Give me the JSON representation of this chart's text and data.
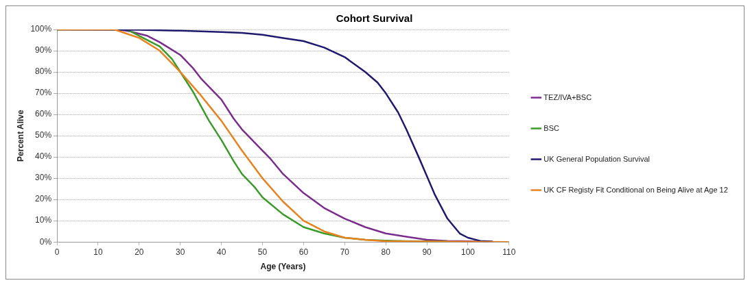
{
  "chart_data": {
    "type": "line",
    "title": "Cohort Survival",
    "xlabel": "Age (Years)",
    "ylabel": "Percent Alive",
    "xlim": [
      0,
      110
    ],
    "xticks": [
      0,
      10,
      20,
      30,
      40,
      50,
      60,
      70,
      80,
      90,
      100,
      110
    ],
    "ylim": [
      0,
      100
    ],
    "yticks": [
      {
        "value": 0,
        "label": "0%"
      },
      {
        "value": 10,
        "label": "10%"
      },
      {
        "value": 20,
        "label": "20%"
      },
      {
        "value": 30,
        "label": "30%"
      },
      {
        "value": 40,
        "label": "40%"
      },
      {
        "value": 50,
        "label": "50%"
      },
      {
        "value": 60,
        "label": "60%"
      },
      {
        "value": 70,
        "label": "70%"
      },
      {
        "value": 80,
        "label": "80%"
      },
      {
        "value": 90,
        "label": "90%"
      },
      {
        "value": 100,
        "label": "100%"
      }
    ],
    "grid": "y",
    "legend": "right",
    "marker": "none",
    "line_style": "solid",
    "series": [
      {
        "name": "TEZ/IVA+BSC",
        "color": "#7b2d8e",
        "x": [
          0,
          15,
          18,
          20,
          22,
          25,
          30,
          33,
          35,
          40,
          43,
          45,
          50,
          52,
          55,
          60,
          65,
          70,
          75,
          80,
          85,
          90,
          95,
          100,
          105
        ],
        "values": [
          100,
          100,
          99,
          98,
          97,
          94,
          88,
          82,
          77,
          67,
          58,
          53,
          43,
          39,
          32,
          23,
          16,
          11,
          7,
          4,
          2.5,
          1,
          0.5,
          0.3,
          0.1
        ]
      },
      {
        "name": "BSC",
        "color": "#3a9a2a",
        "x": [
          0,
          17,
          20,
          25,
          28,
          30,
          33,
          35,
          37,
          40,
          43,
          45,
          48,
          50,
          55,
          60,
          65,
          70,
          75,
          80,
          85,
          95
        ],
        "values": [
          100,
          100,
          97,
          92,
          86,
          80,
          71,
          64,
          57,
          48,
          38,
          32,
          26,
          21,
          13,
          7,
          4,
          2,
          1,
          0.6,
          0.4,
          0.2
        ]
      },
      {
        "name": "UK General Population Survival",
        "color": "#1f1a6e",
        "x": [
          0,
          20,
          30,
          40,
          45,
          50,
          55,
          60,
          65,
          70,
          75,
          78,
          80,
          83,
          85,
          88,
          90,
          92,
          95,
          98,
          100,
          103,
          106
        ],
        "values": [
          100,
          99.8,
          99.4,
          98.8,
          98.4,
          97.5,
          96,
          94.5,
          91.5,
          87,
          80,
          75,
          70,
          61,
          53,
          40,
          31,
          22,
          11,
          4,
          2,
          0.5,
          0.2
        ]
      },
      {
        "name": "UK CF Registy Fit Conditional on Being Alive at Age 12",
        "color": "#e8821e",
        "x": [
          0,
          14,
          17,
          20,
          25,
          30,
          35,
          40,
          45,
          50,
          55,
          60,
          65,
          70,
          75,
          80,
          90,
          110
        ],
        "values": [
          100,
          100,
          98,
          96,
          90,
          80,
          69,
          57,
          43,
          30,
          19,
          10,
          5,
          2,
          1,
          0.4,
          0.2,
          0
        ]
      }
    ]
  }
}
